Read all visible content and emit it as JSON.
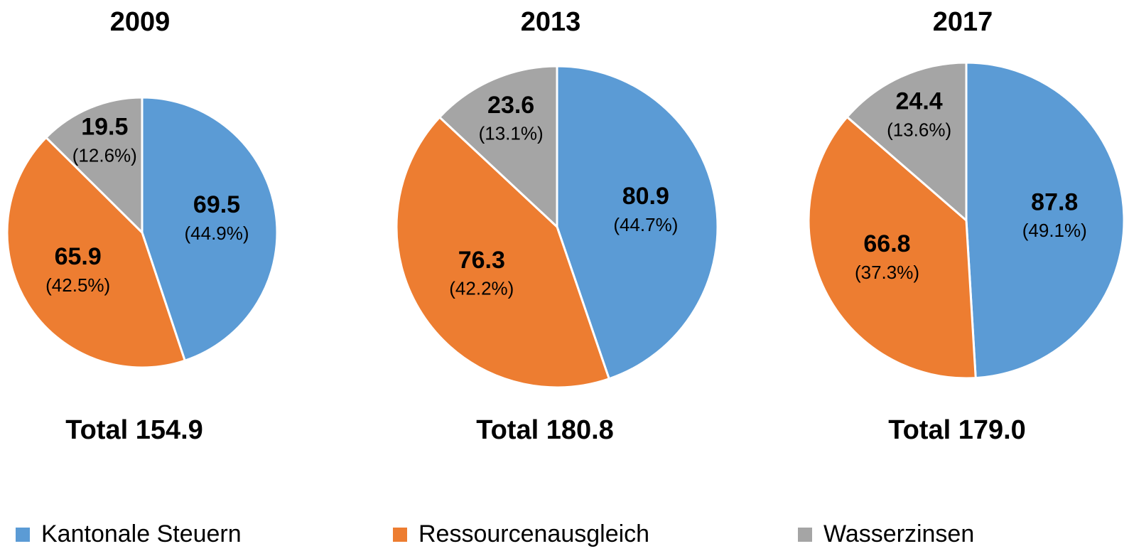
{
  "chart_data": [
    {
      "type": "pie",
      "title": "2009",
      "total": "Total 154.9",
      "categories": [
        "Kantonale Steuern",
        "Ressourcenausgleich",
        "Wasserzinsen"
      ],
      "values": [
        69.5,
        65.9,
        19.5
      ],
      "percent_labels": [
        "(44.9%)",
        "(42.5%)",
        "(12.6%)"
      ],
      "colors": [
        "#5b9bd5",
        "#ed7d31",
        "#a5a5a5"
      ]
    },
    {
      "type": "pie",
      "title": "2013",
      "total": "Total 180.8",
      "categories": [
        "Kantonale Steuern",
        "Ressourcenausgleich",
        "Wasserzinsen"
      ],
      "values": [
        80.9,
        76.3,
        23.6
      ],
      "percent_labels": [
        "(44.7%)",
        "(42.2%)",
        "(13.1%)"
      ],
      "colors": [
        "#5b9bd5",
        "#ed7d31",
        "#a5a5a5"
      ]
    },
    {
      "type": "pie",
      "title": "2017",
      "total": "Total 179.0",
      "categories": [
        "Kantonale Steuern",
        "Ressourcenausgleich",
        "Wasserzinsen"
      ],
      "values": [
        87.8,
        66.8,
        24.4
      ],
      "percent_labels": [
        "(49.1%)",
        "(37.3%)",
        "(13.6%)"
      ],
      "colors": [
        "#5b9bd5",
        "#ed7d31",
        "#a5a5a5"
      ]
    }
  ]
}
